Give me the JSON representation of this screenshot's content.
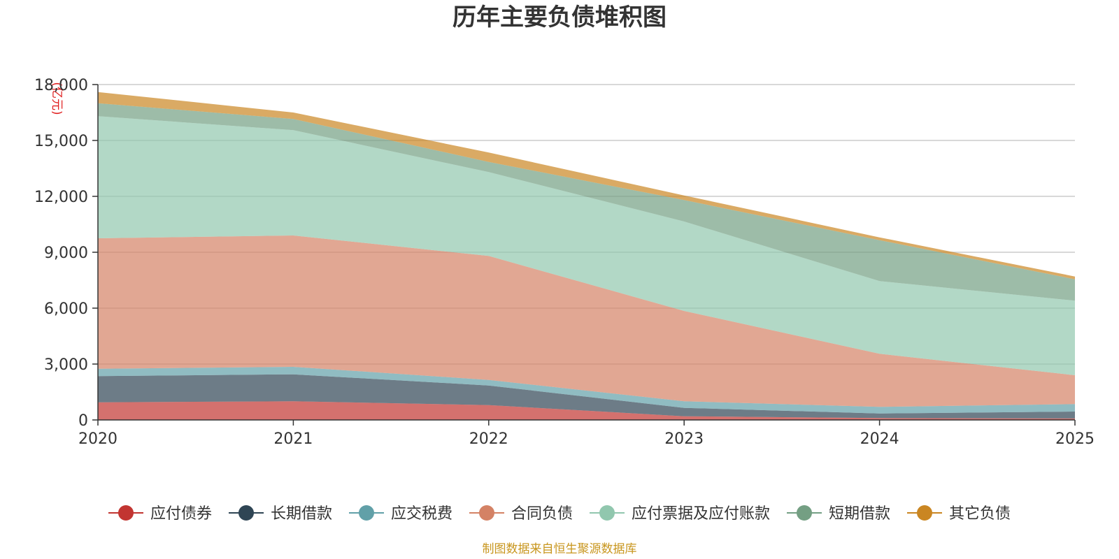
{
  "chart_data": {
    "type": "area",
    "stacked": true,
    "title": "历年主要负债堆积图",
    "unit": "亿元",
    "categories": [
      "2020",
      "2021",
      "2022",
      "2023",
      "2024",
      "2025"
    ],
    "ylim": [
      0,
      18000
    ],
    "yticks": [
      "0",
      "3,000",
      "6,000",
      "9,000",
      "12,000",
      "15,000",
      "18,000"
    ],
    "ytick_values": [
      0,
      3000,
      6000,
      9000,
      12000,
      15000,
      18000
    ],
    "grid": true,
    "legend_position": "bottom",
    "series": [
      {
        "name": "应付债券",
        "color": "#c23531",
        "values": [
          950,
          1000,
          800,
          200,
          100,
          80
        ]
      },
      {
        "name": "长期借款",
        "color": "#2f4554",
        "values": [
          1400,
          1450,
          1050,
          450,
          250,
          370
        ]
      },
      {
        "name": "应交税费",
        "color": "#61a0a8",
        "values": [
          400,
          400,
          300,
          350,
          350,
          400
        ]
      },
      {
        "name": "合同负债",
        "color": "#d48265",
        "values": [
          7000,
          7050,
          6650,
          4850,
          2850,
          1550
        ]
      },
      {
        "name": "应付票据及应付账款",
        "color": "#91c7ae",
        "values": [
          6550,
          5650,
          4500,
          4800,
          3900,
          4000
        ]
      },
      {
        "name": "短期借款",
        "color": "#749f83",
        "values": [
          700,
          600,
          550,
          1150,
          2200,
          1150
        ]
      },
      {
        "name": "其它负债",
        "color": "#ca8622",
        "values": [
          600,
          350,
          500,
          250,
          150,
          150
        ]
      }
    ],
    "source": "制图数据来自恒生聚源数据库"
  }
}
